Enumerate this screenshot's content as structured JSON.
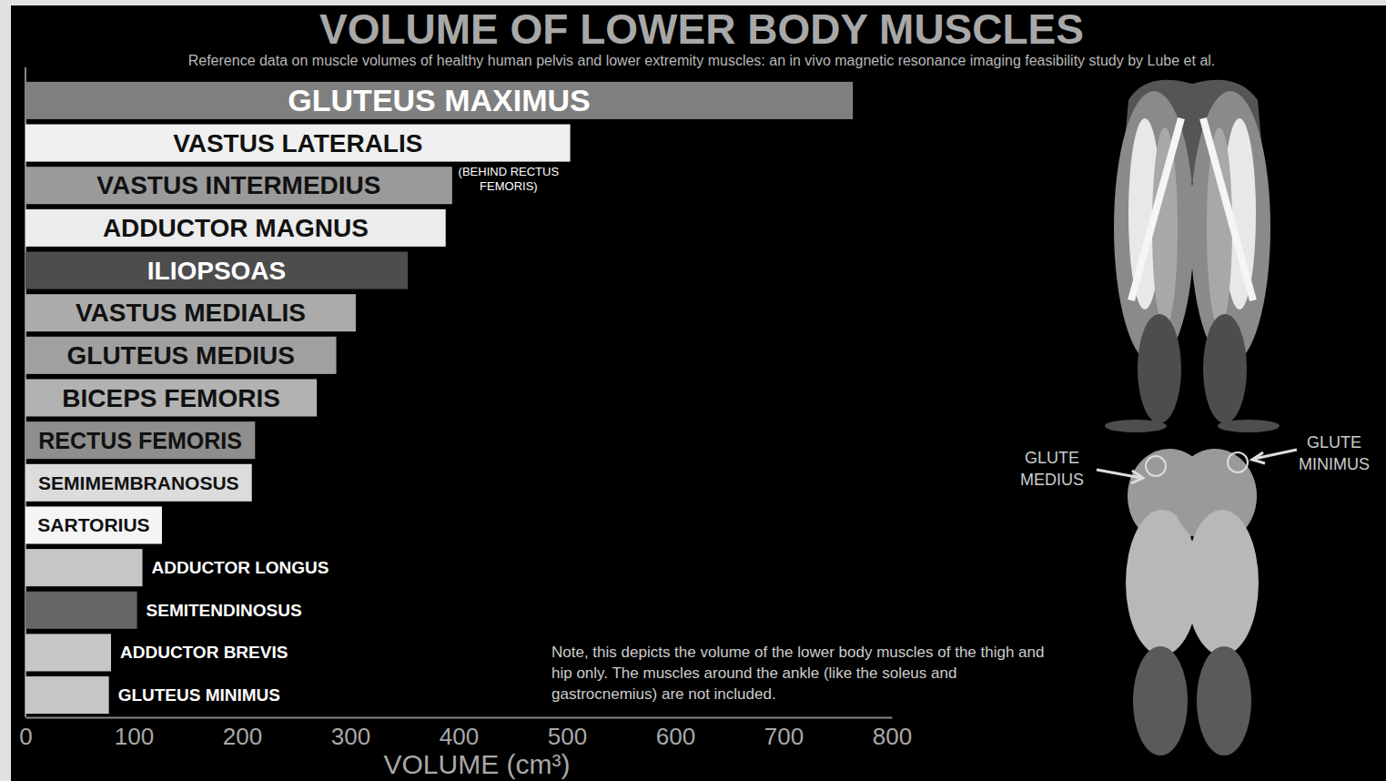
{
  "chart_data": {
    "type": "bar",
    "orientation": "horizontal",
    "title": "VOLUME OF LOWER BODY MUSCLES",
    "subtitle": "Reference data on muscle volumes of healthy human pelvis and lower extremity muscles: an in vivo magnetic resonance imaging feasibility study by Lube et al.",
    "x_label": "VOLUME (cm³)",
    "categories": [
      "GLUTEUS MAXIMUS",
      "VASTUS LATERALIS",
      "VASTUS INTERMEDIUS",
      "ADDUCTOR MAGNUS",
      "ILIOPSOAS",
      "VASTUS MEDIALIS",
      "GLUTEUS MEDIUS",
      "BICEPS FEMORIS",
      "RECTUS FEMORIS",
      "SEMIMEMBRANOSUS",
      "SARTORIUS",
      "ADDUCTOR LONGUS",
      "SEMITENDINOSUS",
      "ADDUCTOR BREVIS",
      "GLUTEUS MINIMUS"
    ],
    "values": [
      764,
      503,
      394,
      388,
      353,
      305,
      287,
      269,
      212,
      209,
      126,
      108,
      103,
      79,
      77
    ],
    "colors": [
      "#7f7f7f",
      "#f0f0f0",
      "#9a9a9a",
      "#ececec",
      "#4d4d4d",
      "#ababab",
      "#a0a0a0",
      "#b2b2b2",
      "#8e8e8e",
      "#dcdcdc",
      "#f5f5f5",
      "#c6c6c6",
      "#666666",
      "#c6c6c6",
      "#c6c6c6"
    ],
    "xlim": [
      0,
      800
    ],
    "xticks": [
      0,
      100,
      200,
      300,
      400,
      500,
      600,
      700,
      800
    ],
    "grid": false,
    "tick_labels": "x",
    "annotations": [
      "(BEHIND RECTUS FEMORIS)",
      "GLUTE MEDIUS",
      "GLUTE MINIMUS",
      "Note, this depicts the volume of the lower body muscles of the thigh and hip only. The muscles around the ankle (like the soleus and gastrocnemius) are not included."
    ]
  }
}
